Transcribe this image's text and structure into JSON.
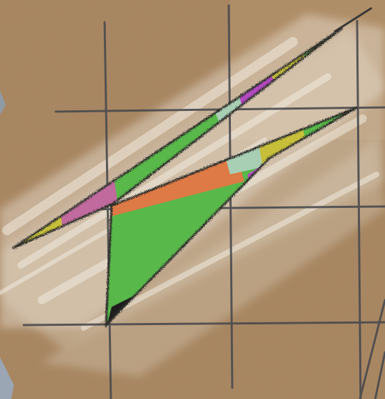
{
  "artwork": {
    "subject": "pastel-drawing",
    "palette": {
      "paper": "#a98660",
      "paper_light": "#bd9a72",
      "chalk": "#f2ece0",
      "pencil": "#4a4a4e",
      "outline": "#2f2d2c",
      "green": "#58b84a",
      "yellow": "#c7bf3a",
      "magenta": "#b24ac0",
      "pink": "#c06a9e",
      "mint": "#a8cfb4",
      "orange": "#de7a45",
      "grey_blue": "#9aa6b4"
    }
  }
}
